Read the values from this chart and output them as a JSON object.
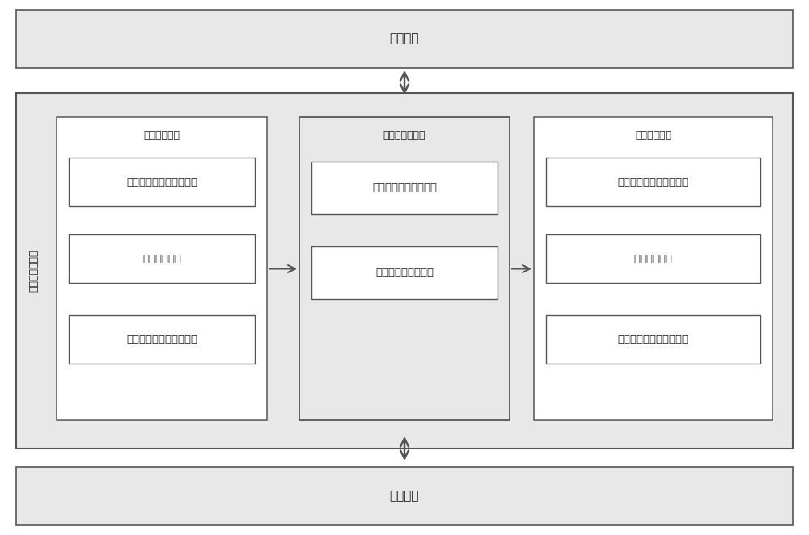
{
  "bg_color": "#f0f0f0",
  "white": "#ffffff",
  "light_gray": "#e8e8e8",
  "border_color": "#555555",
  "text_color": "#222222",
  "arrow_color": "#555555",
  "top_module_label": "上层模块",
  "bottom_module_label": "底层模块",
  "left_side_label": "通用编解码模块",
  "encode_module_label": "消息编码模块",
  "decode_module_label": "消息解码模块",
  "protocol_module_label": "协议编解码模块",
  "encode_box1": "消息编码与上层通信单元",
  "encode_box2": "消息编码单元",
  "encode_box3": "消息编码与底层通信单元",
  "protocol_box1": "协议文件描述解析单元",
  "protocol_box2": "协议编解码处理单元",
  "decode_box1": "消息解码与上层通信单元",
  "decode_box2": "消息解码单元",
  "decode_box3": "消息解码与底层通信单元",
  "font_size_main": 11,
  "font_size_sub": 9.5,
  "font_size_label": 9,
  "font_size_side": 9
}
